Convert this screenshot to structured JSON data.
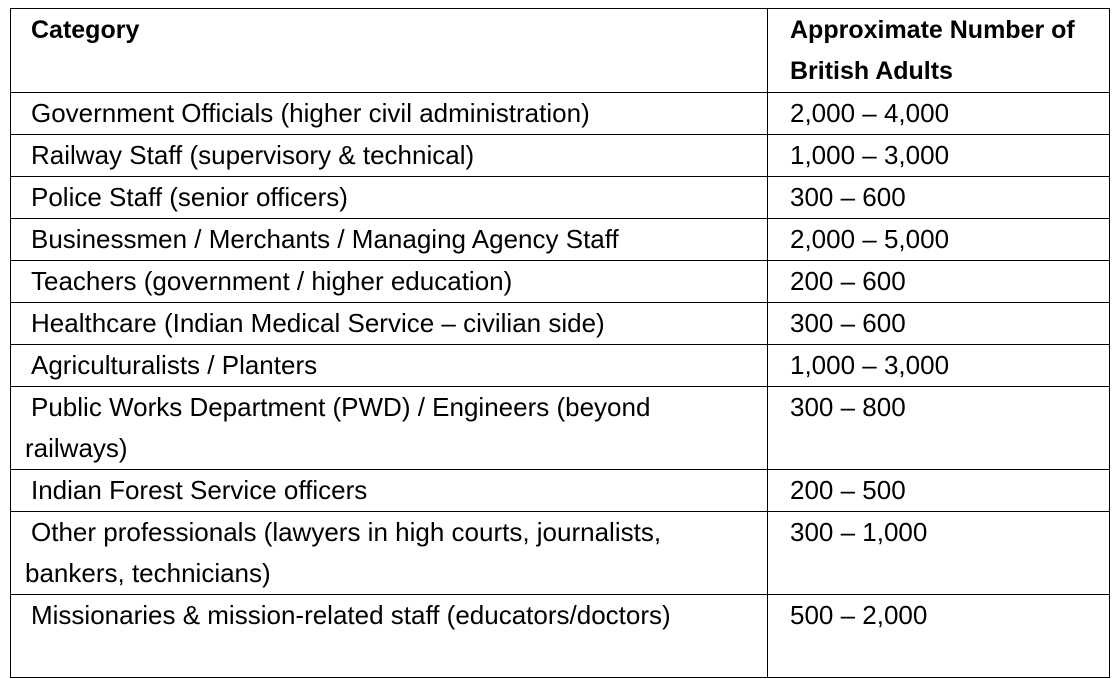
{
  "table": {
    "headers": {
      "category": "Category",
      "count": "Approximate Number of British Adults"
    },
    "rows": [
      {
        "category": "Government Officials (higher civil administration)",
        "count": "2,000 – 4,000"
      },
      {
        "category": "Railway Staff (supervisory & technical)",
        "count": "1,000 – 3,000"
      },
      {
        "category": "Police Staff (senior officers)",
        "count": "300 – 600"
      },
      {
        "category": "Businessmen / Merchants / Managing Agency Staff",
        "count": "2,000 – 5,000"
      },
      {
        "category": "Teachers (government / higher education)",
        "count": "200 – 600"
      },
      {
        "category": "Healthcare (Indian Medical Service – civilian side)",
        "count": "300 – 600"
      },
      {
        "category": "Agriculturalists / Planters",
        "count": "1,000 – 3,000"
      },
      {
        "category": "Public Works Department (PWD) / Engineers (beyond railways)",
        "count": "300 – 800"
      },
      {
        "category": "Indian Forest Service officers",
        "count": "200 – 500"
      },
      {
        "category": "Other professionals (lawyers in high courts, journalists, bankers, technicians)",
        "count": "300 – 1,000"
      },
      {
        "category": "Missionaries & mission-related staff (educators/doctors)",
        "count": "500 – 2,000"
      }
    ]
  }
}
